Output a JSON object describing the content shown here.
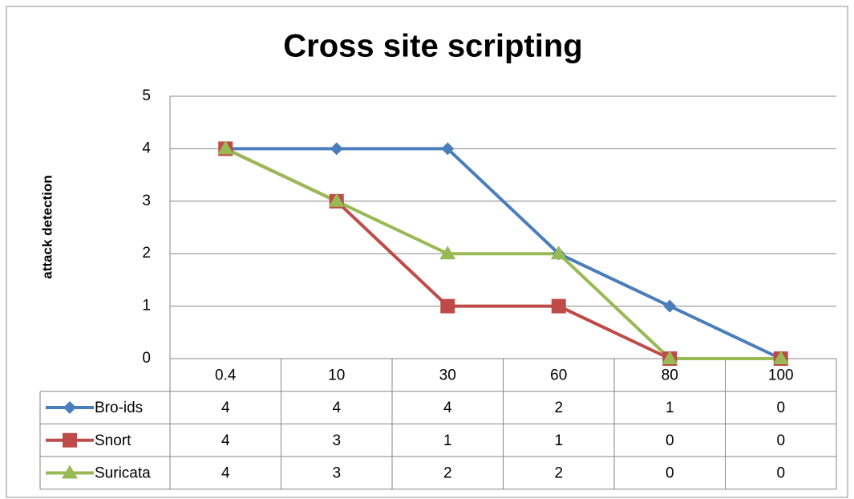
{
  "chart_data": {
    "type": "line",
    "title": "Cross site scripting",
    "y_label": "attack detection",
    "categories": [
      "0.4",
      "10",
      "30",
      "60",
      "80",
      "100"
    ],
    "series": [
      {
        "name": "Bro-ids",
        "color": "#4a7ebb",
        "marker": "diamond",
        "values": [
          4,
          4,
          4,
          2,
          1,
          0
        ]
      },
      {
        "name": "Snort",
        "color": "#be4b48",
        "marker": "square",
        "values": [
          4,
          3,
          1,
          1,
          0,
          0
        ]
      },
      {
        "name": "Suricata",
        "color": "#98b954",
        "marker": "triangle",
        "values": [
          4,
          3,
          2,
          2,
          0,
          0
        ]
      }
    ],
    "ylim": [
      0,
      5
    ],
    "yticks": [
      0,
      1,
      2,
      3,
      4,
      5
    ],
    "grid": true,
    "data_table": true
  }
}
